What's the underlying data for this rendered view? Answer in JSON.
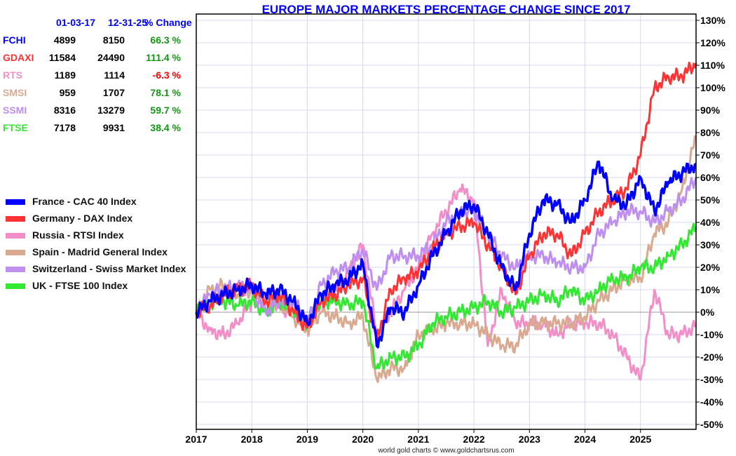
{
  "title": "EUROPE MAJOR MARKETS PERCENTAGE CHANGE SINCE 2017",
  "credit": "world gold charts © www.goldchartsrus.com",
  "table": {
    "headers": [
      "01-03-17",
      "12-31-25",
      "% Change"
    ],
    "rows": [
      {
        "symbol": "FCHI",
        "start": "4899",
        "end": "8150",
        "change": "66.3 %",
        "color": "#0000ff",
        "change_color": "#119911"
      },
      {
        "symbol": "GDAXI",
        "start": "11584",
        "end": "24490",
        "change": "111.4 %",
        "color": "#ff3333",
        "change_color": "#119911"
      },
      {
        "symbol": "RTS",
        "start": "1189",
        "end": "1114",
        "change": "-6.3 %",
        "color": "#f28fc8",
        "change_color": "#ff0000"
      },
      {
        "symbol": "SMSI",
        "start": "959",
        "end": "1707",
        "change": "78.1 %",
        "color": "#d9aa90",
        "change_color": "#119911"
      },
      {
        "symbol": "SSMI",
        "start": "8316",
        "end": "13279",
        "change": "59.7 %",
        "color": "#bf8ff0",
        "change_color": "#119911"
      },
      {
        "symbol": "FTSE",
        "start": "7178",
        "end": "9931",
        "change": "38.4 %",
        "color": "#33e833",
        "change_color": "#119911"
      }
    ]
  },
  "chart_data": {
    "type": "line",
    "title": "EUROPE MAJOR MARKETS PERCENTAGE CHANGE SINCE 2017",
    "xlabel": "",
    "ylabel": "",
    "xlim": [
      2017,
      2026
    ],
    "ylim": [
      -50,
      130
    ],
    "y_ticks": [
      130,
      120,
      110,
      100,
      90,
      80,
      70,
      60,
      50,
      40,
      30,
      20,
      10,
      0,
      -10,
      -20,
      -30,
      -40,
      -50
    ],
    "y_tick_labels": [
      "130%",
      "120%",
      "110%",
      "100%",
      "90%",
      "80%",
      "70%",
      "60%",
      "50%",
      "40%",
      "30%",
      "20%",
      "10%",
      "0%",
      "-10%",
      "-20%",
      "-30%",
      "-40%",
      "-50%"
    ],
    "x_ticks": [
      2017,
      2018,
      2019,
      2020,
      2021,
      2022,
      2023,
      2024,
      2025
    ],
    "x_tick_labels": [
      "2017",
      "2018",
      "2019",
      "2020",
      "2021",
      "2022",
      "2023",
      "2024",
      "2025"
    ],
    "grid": true,
    "legend_position": "left",
    "x_step": 0.25,
    "series": [
      {
        "name": "Russia - RTSI Index",
        "color": "#f28fc8",
        "values": [
          0,
          -8,
          -10,
          -5,
          5,
          8,
          2,
          0,
          -5,
          5,
          10,
          18,
          30,
          -10,
          0,
          10,
          20,
          35,
          45,
          55,
          50,
          -15,
          10,
          -5,
          -5,
          -5,
          -10,
          -5,
          -5,
          -5,
          -10,
          -20,
          -30,
          10,
          -10,
          -10,
          -6
        ]
      },
      {
        "name": "Spain - Madrid General Index",
        "color": "#d9aa90",
        "values": [
          0,
          10,
          12,
          8,
          10,
          5,
          5,
          -2,
          -8,
          0,
          -2,
          -5,
          -2,
          -30,
          -25,
          -25,
          -10,
          -8,
          -5,
          -5,
          -5,
          -10,
          -15,
          -15,
          -5,
          -5,
          -5,
          -5,
          -2,
          5,
          10,
          15,
          15,
          35,
          40,
          55,
          78
        ]
      },
      {
        "name": "UK - FTSE 100 Index",
        "color": "#33e833",
        "values": [
          0,
          5,
          5,
          3,
          5,
          0,
          5,
          0,
          -5,
          5,
          5,
          3,
          5,
          -25,
          -20,
          -20,
          -15,
          -5,
          -2,
          0,
          2,
          5,
          0,
          2,
          5,
          8,
          5,
          10,
          5,
          10,
          15,
          15,
          20,
          20,
          25,
          30,
          38
        ]
      },
      {
        "name": "Switzerland - Swiss Market Index",
        "color": "#bf8ff0",
        "values": [
          0,
          8,
          10,
          12,
          10,
          0,
          5,
          5,
          -5,
          12,
          18,
          20,
          28,
          10,
          25,
          25,
          25,
          30,
          40,
          45,
          45,
          35,
          25,
          20,
          25,
          25,
          22,
          20,
          20,
          35,
          40,
          45,
          45,
          40,
          45,
          50,
          60
        ]
      },
      {
        "name": "Germany - DAX Index",
        "color": "#ff3333",
        "values": [
          0,
          3,
          8,
          10,
          12,
          5,
          8,
          0,
          -7,
          5,
          8,
          12,
          15,
          -12,
          10,
          15,
          18,
          28,
          35,
          38,
          40,
          30,
          20,
          8,
          25,
          35,
          35,
          25,
          35,
          45,
          50,
          55,
          70,
          100,
          105,
          105,
          111
        ]
      },
      {
        "name": "France - CAC 40 Index",
        "color": "#0000ff",
        "values": [
          0,
          5,
          8,
          10,
          12,
          8,
          10,
          5,
          -5,
          8,
          12,
          15,
          22,
          -15,
          2,
          0,
          12,
          25,
          35,
          45,
          48,
          35,
          20,
          10,
          35,
          50,
          48,
          40,
          50,
          67,
          50,
          48,
          60,
          45,
          58,
          62,
          66
        ]
      }
    ]
  },
  "legend": [
    {
      "label": "France - CAC 40 Index",
      "color": "#0000ff"
    },
    {
      "label": "Germany - DAX Index",
      "color": "#ff3333"
    },
    {
      "label": "Russia - RTSI Index",
      "color": "#f28fc8"
    },
    {
      "label": "Spain - Madrid General Index",
      "color": "#d9aa90"
    },
    {
      "label": "Switzerland - Swiss Market Index",
      "color": "#bf8ff0"
    },
    {
      "label": "UK - FTSE 100 Index",
      "color": "#33e833"
    }
  ]
}
